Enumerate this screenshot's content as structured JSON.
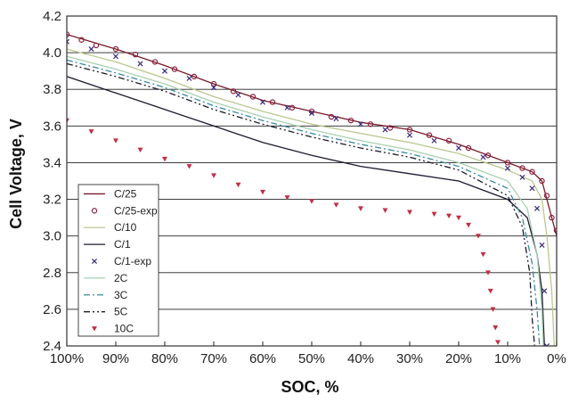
{
  "chart_data": {
    "type": "line",
    "xlabel": "SOC, %",
    "ylabel": "Cell Voltage, V",
    "xlim": [
      100,
      0
    ],
    "ylim": [
      2.4,
      4.2
    ],
    "x_ticks": [
      "100%",
      "90%",
      "80%",
      "70%",
      "60%",
      "50%",
      "40%",
      "30%",
      "20%",
      "10%",
      "0%"
    ],
    "y_ticks": [
      "4.2",
      "4.0",
      "3.8",
      "3.6",
      "3.4",
      "3.2",
      "3.0",
      "2.8",
      "2.6",
      "2.4"
    ],
    "grid": "horizontal",
    "legend_position": "left",
    "series": [
      {
        "name": "C/25",
        "style": "line",
        "color": "#7a1a2a",
        "points": [
          [
            100,
            4.1
          ],
          [
            90,
            4.02
          ],
          [
            80,
            3.93
          ],
          [
            70,
            3.83
          ],
          [
            60,
            3.74
          ],
          [
            50,
            3.68
          ],
          [
            40,
            3.62
          ],
          [
            30,
            3.58
          ],
          [
            20,
            3.5
          ],
          [
            10,
            3.4
          ],
          [
            5,
            3.35
          ],
          [
            3,
            3.3
          ],
          [
            1,
            3.1
          ],
          [
            0,
            3.0
          ]
        ]
      },
      {
        "name": "C/25-exp",
        "style": "circle",
        "color": "#8a2040",
        "points": [
          [
            100,
            4.1
          ],
          [
            97,
            4.07
          ],
          [
            94,
            4.04
          ],
          [
            90,
            4.02
          ],
          [
            86,
            3.99
          ],
          [
            82,
            3.95
          ],
          [
            78,
            3.91
          ],
          [
            74,
            3.87
          ],
          [
            70,
            3.83
          ],
          [
            66,
            3.79
          ],
          [
            62,
            3.76
          ],
          [
            58,
            3.73
          ],
          [
            54,
            3.7
          ],
          [
            50,
            3.68
          ],
          [
            46,
            3.65
          ],
          [
            42,
            3.63
          ],
          [
            38,
            3.61
          ],
          [
            34,
            3.59
          ],
          [
            30,
            3.58
          ],
          [
            26,
            3.55
          ],
          [
            22,
            3.52
          ],
          [
            18,
            3.48
          ],
          [
            14,
            3.44
          ],
          [
            10,
            3.4
          ],
          [
            7,
            3.37
          ],
          [
            5,
            3.35
          ],
          [
            3,
            3.3
          ],
          [
            2,
            3.22
          ],
          [
            1,
            3.1
          ],
          [
            0,
            3.03
          ]
        ]
      },
      {
        "name": "C/10",
        "style": "line",
        "color": "#b8c890",
        "points": [
          [
            100,
            4.02
          ],
          [
            90,
            3.95
          ],
          [
            80,
            3.86
          ],
          [
            70,
            3.76
          ],
          [
            60,
            3.68
          ],
          [
            50,
            3.61
          ],
          [
            40,
            3.56
          ],
          [
            30,
            3.51
          ],
          [
            20,
            3.45
          ],
          [
            10,
            3.36
          ],
          [
            5,
            3.3
          ],
          [
            3,
            3.2
          ],
          [
            2,
            3.0
          ],
          [
            1,
            2.7
          ],
          [
            0.5,
            2.4
          ]
        ]
      },
      {
        "name": "C/1",
        "style": "line",
        "color": "#1a1a30",
        "points": [
          [
            100,
            3.87
          ],
          [
            90,
            3.78
          ],
          [
            80,
            3.69
          ],
          [
            70,
            3.6
          ],
          [
            60,
            3.51
          ],
          [
            50,
            3.44
          ],
          [
            40,
            3.38
          ],
          [
            30,
            3.34
          ],
          [
            20,
            3.3
          ],
          [
            10,
            3.2
          ],
          [
            6,
            3.1
          ],
          [
            4,
            2.9
          ],
          [
            3,
            2.7
          ],
          [
            2.5,
            2.4
          ]
        ]
      },
      {
        "name": "C/1-exp",
        "style": "cross",
        "color": "#3a2a7a",
        "points": [
          [
            100,
            4.06
          ],
          [
            95,
            4.02
          ],
          [
            90,
            3.98
          ],
          [
            85,
            3.94
          ],
          [
            80,
            3.9
          ],
          [
            75,
            3.86
          ],
          [
            70,
            3.81
          ],
          [
            65,
            3.77
          ],
          [
            60,
            3.73
          ],
          [
            55,
            3.7
          ],
          [
            50,
            3.67
          ],
          [
            45,
            3.64
          ],
          [
            40,
            3.61
          ],
          [
            35,
            3.58
          ],
          [
            30,
            3.55
          ],
          [
            25,
            3.52
          ],
          [
            20,
            3.48
          ],
          [
            15,
            3.43
          ],
          [
            10,
            3.37
          ],
          [
            7,
            3.32
          ],
          [
            5,
            3.26
          ],
          [
            4,
            3.15
          ],
          [
            3,
            2.95
          ],
          [
            2.5,
            2.7
          ],
          [
            2,
            2.4
          ]
        ]
      },
      {
        "name": "2C",
        "style": "line",
        "color": "#a8d0b0",
        "points": [
          [
            100,
            3.98
          ],
          [
            90,
            3.91
          ],
          [
            80,
            3.83
          ],
          [
            70,
            3.73
          ],
          [
            60,
            3.65
          ],
          [
            50,
            3.58
          ],
          [
            40,
            3.52
          ],
          [
            30,
            3.47
          ],
          [
            20,
            3.4
          ],
          [
            10,
            3.3
          ],
          [
            6,
            3.15
          ],
          [
            4,
            2.9
          ],
          [
            3,
            2.6
          ],
          [
            2.7,
            2.4
          ]
        ]
      },
      {
        "name": "3C",
        "style": "dashdot",
        "color": "#3a8aa0",
        "points": [
          [
            100,
            3.96
          ],
          [
            90,
            3.89
          ],
          [
            80,
            3.81
          ],
          [
            70,
            3.71
          ],
          [
            60,
            3.63
          ],
          [
            50,
            3.56
          ],
          [
            40,
            3.5
          ],
          [
            30,
            3.45
          ],
          [
            20,
            3.38
          ],
          [
            10,
            3.26
          ],
          [
            7,
            3.1
          ],
          [
            5,
            2.85
          ],
          [
            4,
            2.6
          ],
          [
            3.5,
            2.4
          ]
        ]
      },
      {
        "name": "5C",
        "style": "dashdotdot",
        "color": "#1a1a30",
        "points": [
          [
            100,
            3.94
          ],
          [
            90,
            3.87
          ],
          [
            80,
            3.79
          ],
          [
            70,
            3.69
          ],
          [
            60,
            3.61
          ],
          [
            50,
            3.54
          ],
          [
            40,
            3.48
          ],
          [
            30,
            3.43
          ],
          [
            20,
            3.36
          ],
          [
            10,
            3.22
          ],
          [
            7,
            3.05
          ],
          [
            5.5,
            2.8
          ],
          [
            5,
            2.55
          ],
          [
            4.5,
            2.4
          ]
        ]
      },
      {
        "name": "10C",
        "style": "triangle",
        "color": "#c03048",
        "points": [
          [
            100,
            3.63
          ],
          [
            95,
            3.57
          ],
          [
            90,
            3.52
          ],
          [
            85,
            3.47
          ],
          [
            80,
            3.42
          ],
          [
            75,
            3.38
          ],
          [
            70,
            3.33
          ],
          [
            65,
            3.28
          ],
          [
            60,
            3.24
          ],
          [
            55,
            3.21
          ],
          [
            50,
            3.19
          ],
          [
            45,
            3.17
          ],
          [
            40,
            3.15
          ],
          [
            35,
            3.14
          ],
          [
            30,
            3.13
          ],
          [
            25,
            3.12
          ],
          [
            22,
            3.11
          ],
          [
            20,
            3.1
          ],
          [
            18,
            3.06
          ],
          [
            16,
            3.0
          ],
          [
            15,
            2.9
          ],
          [
            14,
            2.8
          ],
          [
            13.5,
            2.7
          ],
          [
            13,
            2.6
          ],
          [
            12.5,
            2.5
          ],
          [
            12,
            2.42
          ]
        ]
      }
    ]
  }
}
